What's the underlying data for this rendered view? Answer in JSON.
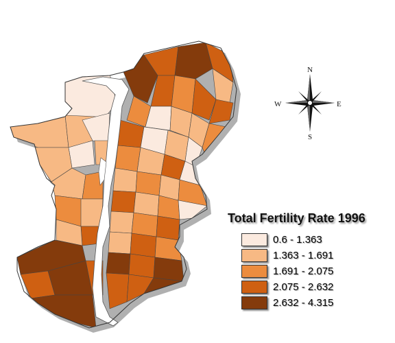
{
  "legend": {
    "title": "Total Fertility Rate 1996",
    "classes": [
      {
        "label": "0.6 - 1.363",
        "color": "#fbeadf"
      },
      {
        "label": "1.363 - 1.691",
        "color": "#f7b984"
      },
      {
        "label": "1.691 - 2.075",
        "color": "#ec8c3e"
      },
      {
        "label": "2.075 - 2.632",
        "color": "#cf6012"
      },
      {
        "label": "2.632 - 4.315",
        "color": "#843b0c"
      }
    ]
  },
  "compass": {
    "n": "N",
    "s": "S",
    "e": "E",
    "w": "W"
  },
  "colors": {
    "river": "#ffffff",
    "boundary": "#444444",
    "shadow": "#b0b0b0"
  }
}
